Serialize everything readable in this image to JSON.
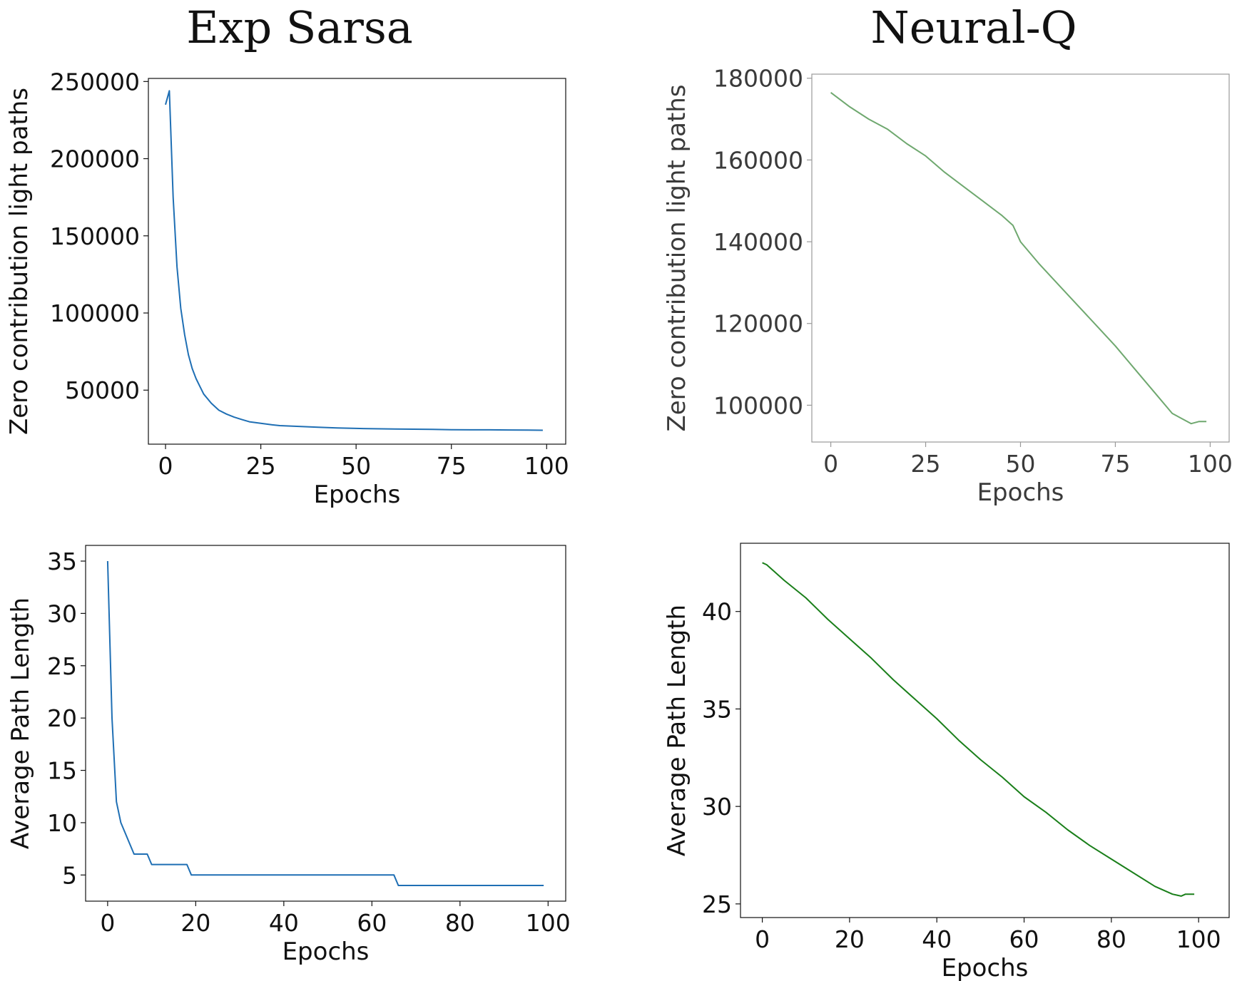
{
  "titles": {
    "left": "Exp Sarsa",
    "right": "Neural-Q"
  },
  "chart_data": [
    {
      "type": "line",
      "column_title": "Exp Sarsa",
      "xlabel": "Epochs",
      "ylabel": "Zero contribution light paths",
      "xlim": [
        -4.5,
        105
      ],
      "ylim": [
        15000,
        252000
      ],
      "xticks": [
        0,
        25,
        50,
        75,
        100
      ],
      "yticks": [
        50000,
        100000,
        150000,
        200000,
        250000
      ],
      "color": "#1f6fb4",
      "series": [
        {
          "x": [
            0,
            1,
            2,
            3,
            4,
            5,
            6,
            7,
            8,
            9,
            10,
            12,
            14,
            16,
            18,
            20,
            22,
            25,
            28,
            30,
            35,
            40,
            45,
            50,
            55,
            60,
            65,
            70,
            75,
            80,
            85,
            90,
            95,
            99
          ],
          "values": [
            235000,
            244000,
            175000,
            130000,
            103000,
            86000,
            73000,
            64000,
            57500,
            52500,
            47500,
            41500,
            37000,
            34500,
            32500,
            31000,
            29500,
            28500,
            27500,
            27000,
            26500,
            26000,
            25500,
            25200,
            25000,
            24800,
            24700,
            24600,
            24400,
            24300,
            24300,
            24200,
            24100,
            24000
          ]
        }
      ]
    },
    {
      "type": "line",
      "column_title": "Neural-Q",
      "xlabel": "Epochs",
      "ylabel": "Zero contribution light paths",
      "xlim": [
        -5,
        105
      ],
      "ylim": [
        91000,
        181000
      ],
      "xticks": [
        0,
        25,
        50,
        75,
        100
      ],
      "yticks": [
        100000,
        120000,
        140000,
        160000,
        180000
      ],
      "color": "#6fa86f",
      "series": [
        {
          "x": [
            0,
            5,
            10,
            15,
            20,
            25,
            30,
            35,
            40,
            45,
            48,
            50,
            55,
            60,
            65,
            70,
            75,
            80,
            85,
            90,
            95,
            97,
            99
          ],
          "values": [
            176500,
            173000,
            170000,
            167500,
            164000,
            161000,
            157000,
            153500,
            150000,
            146500,
            144000,
            140000,
            134500,
            129500,
            124500,
            119500,
            114500,
            109000,
            103500,
            98000,
            95500,
            96000,
            96000
          ]
        }
      ]
    },
    {
      "type": "line",
      "column_title": "Exp Sarsa",
      "xlabel": "Epochs",
      "ylabel": "Average Path Length",
      "xlim": [
        -5,
        104
      ],
      "ylim": [
        2.5,
        36.5
      ],
      "xticks": [
        0,
        20,
        40,
        60,
        80,
        100
      ],
      "yticks": [
        5,
        10,
        15,
        20,
        25,
        30,
        35
      ],
      "color": "#1f6fb4",
      "series": [
        {
          "x": [
            0,
            1,
            2,
            3,
            4,
            5,
            6,
            7,
            8,
            9,
            10,
            11,
            12,
            13,
            14,
            15,
            16,
            17,
            18,
            19,
            20,
            30,
            40,
            50,
            60,
            65,
            66,
            70,
            80,
            90,
            99
          ],
          "values": [
            35,
            20,
            12,
            10,
            9,
            8,
            7,
            7,
            7,
            7,
            6,
            6,
            6,
            6,
            6,
            6,
            6,
            6,
            6,
            5,
            5,
            5,
            5,
            5,
            5,
            5,
            4,
            4,
            4,
            4,
            4
          ]
        }
      ]
    },
    {
      "type": "line",
      "column_title": "Neural-Q",
      "xlabel": "Epochs",
      "ylabel": "Average Path Length",
      "xlim": [
        -5,
        107
      ],
      "ylim": [
        24.3,
        43.5
      ],
      "xticks": [
        0,
        20,
        40,
        60,
        80,
        100
      ],
      "yticks": [
        25,
        30,
        35,
        40
      ],
      "color": "#1a7f1a",
      "series": [
        {
          "x": [
            0,
            1,
            5,
            10,
            15,
            20,
            25,
            30,
            35,
            40,
            45,
            50,
            55,
            60,
            65,
            70,
            75,
            80,
            85,
            90,
            94,
            96,
            97,
            99
          ],
          "values": [
            42.5,
            42.4,
            41.6,
            40.7,
            39.6,
            38.6,
            37.6,
            36.5,
            35.5,
            34.5,
            33.4,
            32.4,
            31.5,
            30.5,
            29.7,
            28.8,
            28.0,
            27.3,
            26.6,
            25.9,
            25.5,
            25.4,
            25.5,
            25.5
          ]
        }
      ]
    }
  ]
}
